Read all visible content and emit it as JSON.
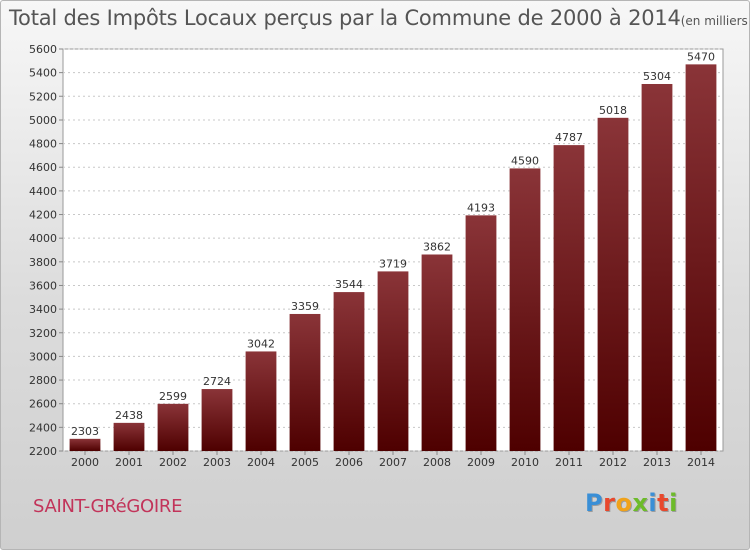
{
  "header": {
    "title": "Total des Impôts Locaux perçus par la Commune de 2000 à 2014",
    "unit": "(en milliers d'€)"
  },
  "footer": {
    "commune": "SAINT-GRéGOIRE",
    "brand": [
      "P",
      "r",
      "o",
      "x",
      "i",
      "t",
      "i"
    ]
  },
  "colors": {
    "bar_top": "#8a3438",
    "bar_bottom": "#4e0000",
    "commune_text": "#c2345a",
    "brand_letters": [
      "#3a8fd6",
      "#e8482c",
      "#f0a21a",
      "#6dbb2a",
      "#3a8fd6",
      "#e8482c",
      "#6dbb2a"
    ]
  },
  "chart_data": {
    "type": "bar",
    "title": "Total des Impôts Locaux perçus par la Commune de 2000 à 2014",
    "unit": "(en milliers d'€)",
    "categories": [
      "2000",
      "2001",
      "2002",
      "2003",
      "2004",
      "2005",
      "2006",
      "2007",
      "2008",
      "2009",
      "2010",
      "2011",
      "2012",
      "2013",
      "2014"
    ],
    "values": [
      2303,
      2438,
      2599,
      2724,
      3042,
      3359,
      3544,
      3719,
      3862,
      4193,
      4590,
      4787,
      5018,
      5304,
      5470
    ],
    "ylim": [
      2200,
      5600
    ],
    "yticks": [
      2200,
      2400,
      2600,
      2800,
      3000,
      3200,
      3400,
      3600,
      3800,
      4000,
      4200,
      4400,
      4600,
      4800,
      5000,
      5200,
      5400,
      5600
    ],
    "grid": true,
    "xlabel": "",
    "ylabel": ""
  }
}
